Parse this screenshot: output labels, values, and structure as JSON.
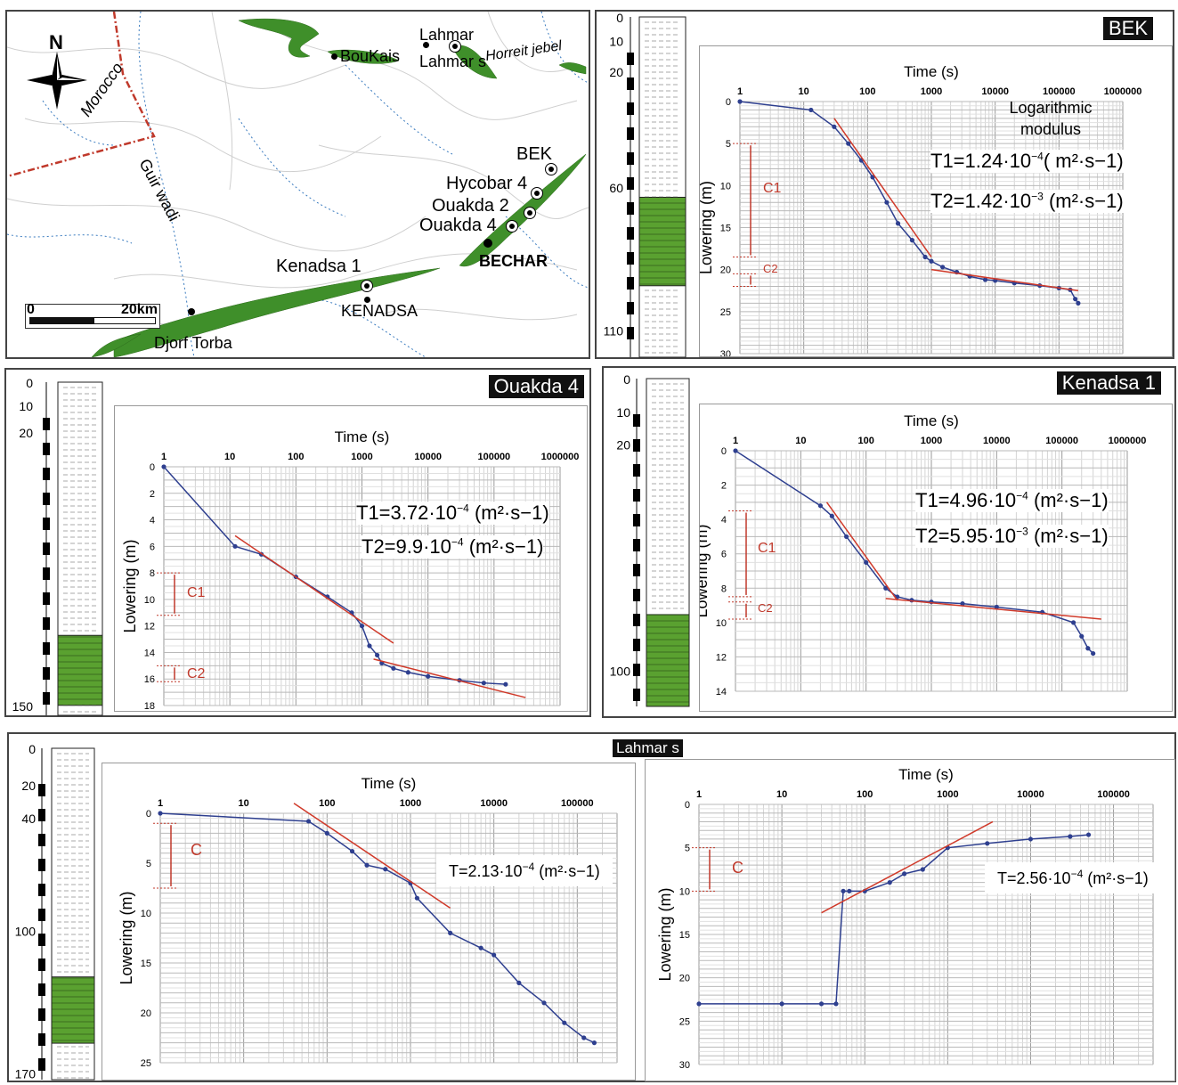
{
  "map": {
    "north_label": "N",
    "country_label": "Morocco",
    "wadi_label": "Guir wadi",
    "scale_start": "0",
    "scale_end": "20km",
    "places": {
      "boukais": "BouKais",
      "lahmar": "Lahmar",
      "lahmar_s": "Lahmar s",
      "horreit": "Horreit jebel",
      "bek": "BEK",
      "hycobar4": "Hycobar 4",
      "ouakda2": "Ouakda 2",
      "ouakda4": "Ouakda 4",
      "bechar": "BECHAR",
      "kenadsa1": "Kenadsa 1",
      "kenadsa": "KENADSA",
      "djorf": "Djorf Torba"
    },
    "colors": {
      "outcrop": "#3f8f2a",
      "border": "#c0392b",
      "rivers": "#3a7bbf"
    }
  },
  "panels": {
    "bek": {
      "badge": "BEK",
      "col_depths": [
        "0",
        "10",
        "20",
        "60",
        "110"
      ],
      "extra_note": "Logarithmic modulus",
      "t1_label": "T1=1.24·10",
      "t1_exp": "−4",
      "t1_unit": "( m²·s−1)",
      "t2_label": "T2=1.42·10",
      "t2_exp": "−3",
      "t2_unit": " (m²·s−1)",
      "c_labels": [
        "C1",
        "C2"
      ]
    },
    "ouakda4": {
      "badge": "Ouakda 4",
      "col_depths": [
        "0",
        "10",
        "20",
        "150"
      ],
      "t1_label": "T1=3.72·10",
      "t1_exp": "−4",
      "t1_unit": " (m²·s−1)",
      "t2_label": "T2=9.9·10",
      "t2_exp": "−4",
      "t2_unit": " (m²·s−1)",
      "c_labels": [
        "C1",
        "C2"
      ]
    },
    "kenadsa1": {
      "badge": "Kenadsa 1",
      "col_depths": [
        "0",
        "10",
        "20",
        "100"
      ],
      "t1_label": "T1=4.96·10",
      "t1_exp": "−4",
      "t1_unit": " (m²·s−1)",
      "t2_label": "T2=5.95·10",
      "t2_exp": "−3",
      "t2_unit": " (m²·s−1)",
      "c_labels": [
        "C1",
        "C2"
      ]
    },
    "lahmar": {
      "badge": "Lahmar s",
      "col_depths": [
        "0",
        "20",
        "40",
        "100",
        "170"
      ],
      "t_left_label": "T=2.13·10",
      "t_left_exp": "−4",
      "t_left_unit": " (m²·s−1)",
      "t_right_label": "T=2.56·10",
      "t_right_exp": "−4",
      "t_right_unit": " (m²·s−1)",
      "c_label": "C"
    }
  },
  "chart_data": [
    {
      "id": "bek",
      "type": "line",
      "title": "BEK",
      "xlabel": "Time (s)",
      "ylabel": "Lowering (m)",
      "xscale": "log",
      "xlim": [
        1,
        1000000
      ],
      "xticks": [
        "1",
        "10",
        "100",
        "1000",
        "10000",
        "100000",
        "1000000"
      ],
      "ylim": [
        0,
        30
      ],
      "yticks": [
        "0",
        "5",
        "10",
        "15",
        "20",
        "25",
        "30"
      ],
      "series": [
        {
          "x": [
            1,
            13,
            30,
            50,
            80,
            120,
            200,
            300,
            500,
            800,
            1000,
            1500,
            2500,
            4000,
            7000,
            10000,
            20000,
            50000,
            100000,
            150000,
            180000,
            200000
          ],
          "y": [
            0,
            1,
            3,
            5,
            7,
            9,
            12,
            14.5,
            16.5,
            18.5,
            19,
            19.7,
            20.3,
            20.8,
            21.2,
            21.3,
            21.6,
            21.9,
            22.2,
            22.4,
            23.5,
            24
          ]
        }
      ],
      "fit_lines": [
        {
          "x": [
            30,
            1000
          ],
          "y": [
            2,
            18.5
          ]
        },
        {
          "x": [
            1000,
            200000
          ],
          "y": [
            20,
            22.5
          ]
        }
      ]
    },
    {
      "id": "ouakda4",
      "type": "line",
      "title": "Ouakda 4",
      "xlabel": "Time (s)",
      "ylabel": "Lowering (m)",
      "xscale": "log",
      "xlim": [
        1,
        1000000
      ],
      "xticks": [
        "1",
        "10",
        "100",
        "1000",
        "10000",
        "100000",
        "1000000"
      ],
      "ylim": [
        0,
        18
      ],
      "yticks": [
        "0",
        "2",
        "4",
        "6",
        "8",
        "10",
        "12",
        "14",
        "16",
        "18"
      ],
      "series": [
        {
          "x": [
            1,
            12,
            30,
            100,
            300,
            700,
            1000,
            1300,
            1700,
            2000,
            3000,
            5000,
            10000,
            30000,
            70000,
            150000
          ],
          "y": [
            0,
            6,
            6.6,
            8.3,
            9.8,
            11,
            12,
            13.5,
            14.2,
            14.8,
            15.2,
            15.5,
            15.8,
            16.1,
            16.3,
            16.4
          ]
        }
      ],
      "fit_lines": [
        {
          "x": [
            12,
            3000
          ],
          "y": [
            5.2,
            13.3
          ]
        },
        {
          "x": [
            1500,
            300000
          ],
          "y": [
            14.5,
            17.4
          ]
        }
      ]
    },
    {
      "id": "kenadsa1",
      "type": "line",
      "title": "Kenadsa 1",
      "xlabel": "Time (s)",
      "ylabel": "Lowering (m)",
      "xscale": "log",
      "xlim": [
        1,
        1000000
      ],
      "xticks": [
        "1",
        "10",
        "100",
        "1000",
        "10000",
        "100000",
        "1000000"
      ],
      "ylim": [
        0,
        14
      ],
      "yticks": [
        "0",
        "2",
        "4",
        "6",
        "8",
        "10",
        "12",
        "14"
      ],
      "series": [
        {
          "x": [
            1,
            20,
            30,
            50,
            100,
            200,
            300,
            500,
            1000,
            3000,
            10000,
            50000,
            150000,
            200000,
            250000,
            300000
          ],
          "y": [
            0,
            3.2,
            3.8,
            5,
            6.5,
            8,
            8.5,
            8.7,
            8.8,
            8.9,
            9.1,
            9.4,
            10,
            10.8,
            11.5,
            11.8
          ]
        }
      ],
      "fit_lines": [
        {
          "x": [
            25,
            300
          ],
          "y": [
            3,
            8.7
          ]
        },
        {
          "x": [
            200,
            400000
          ],
          "y": [
            8.6,
            9.8
          ]
        }
      ]
    },
    {
      "id": "lahmar_left",
      "type": "line",
      "title": "Lahmar s",
      "xlabel": "Time (s)",
      "ylabel": "Lowering (m)",
      "xscale": "log",
      "xlim": [
        1,
        300000
      ],
      "xticks": [
        "1",
        "10",
        "100",
        "1000",
        "10000",
        "100000"
      ],
      "ylim": [
        0,
        25
      ],
      "yticks": [
        "0",
        "5",
        "10",
        "15",
        "20",
        "25"
      ],
      "series": [
        {
          "x": [
            1,
            60,
            100,
            200,
            300,
            500,
            1000,
            1200,
            3000,
            7000,
            10000,
            20000,
            40000,
            70000,
            120000,
            160000
          ],
          "y": [
            0,
            0.8,
            2,
            3.8,
            5.2,
            5.6,
            7,
            8.5,
            12,
            13.5,
            14.2,
            17,
            19,
            21,
            22.5,
            23
          ]
        }
      ],
      "fit_lines": [
        {
          "x": [
            40,
            3000
          ],
          "y": [
            -1,
            9.5
          ]
        }
      ]
    },
    {
      "id": "lahmar_right",
      "type": "line",
      "xlabel": "Time (s)",
      "ylabel": "Lowering (m)",
      "xscale": "log",
      "xlim": [
        1,
        300000
      ],
      "xticks": [
        "1",
        "10",
        "100",
        "1000",
        "10000",
        "100000"
      ],
      "ylim": [
        0,
        30
      ],
      "yticks": [
        "0",
        "5",
        "10",
        "15",
        "20",
        "25",
        "30"
      ],
      "series": [
        {
          "x": [
            1,
            10,
            30,
            45,
            55,
            65,
            100,
            200,
            300,
            500,
            1000,
            3000,
            10000,
            30000,
            50000
          ],
          "y": [
            23,
            23,
            23,
            23,
            10,
            10,
            10,
            9,
            8,
            7.5,
            5,
            4.5,
            4,
            3.7,
            3.5
          ]
        }
      ],
      "fit_lines": [
        {
          "x": [
            30,
            3500
          ],
          "y": [
            12.5,
            2
          ]
        }
      ]
    }
  ]
}
